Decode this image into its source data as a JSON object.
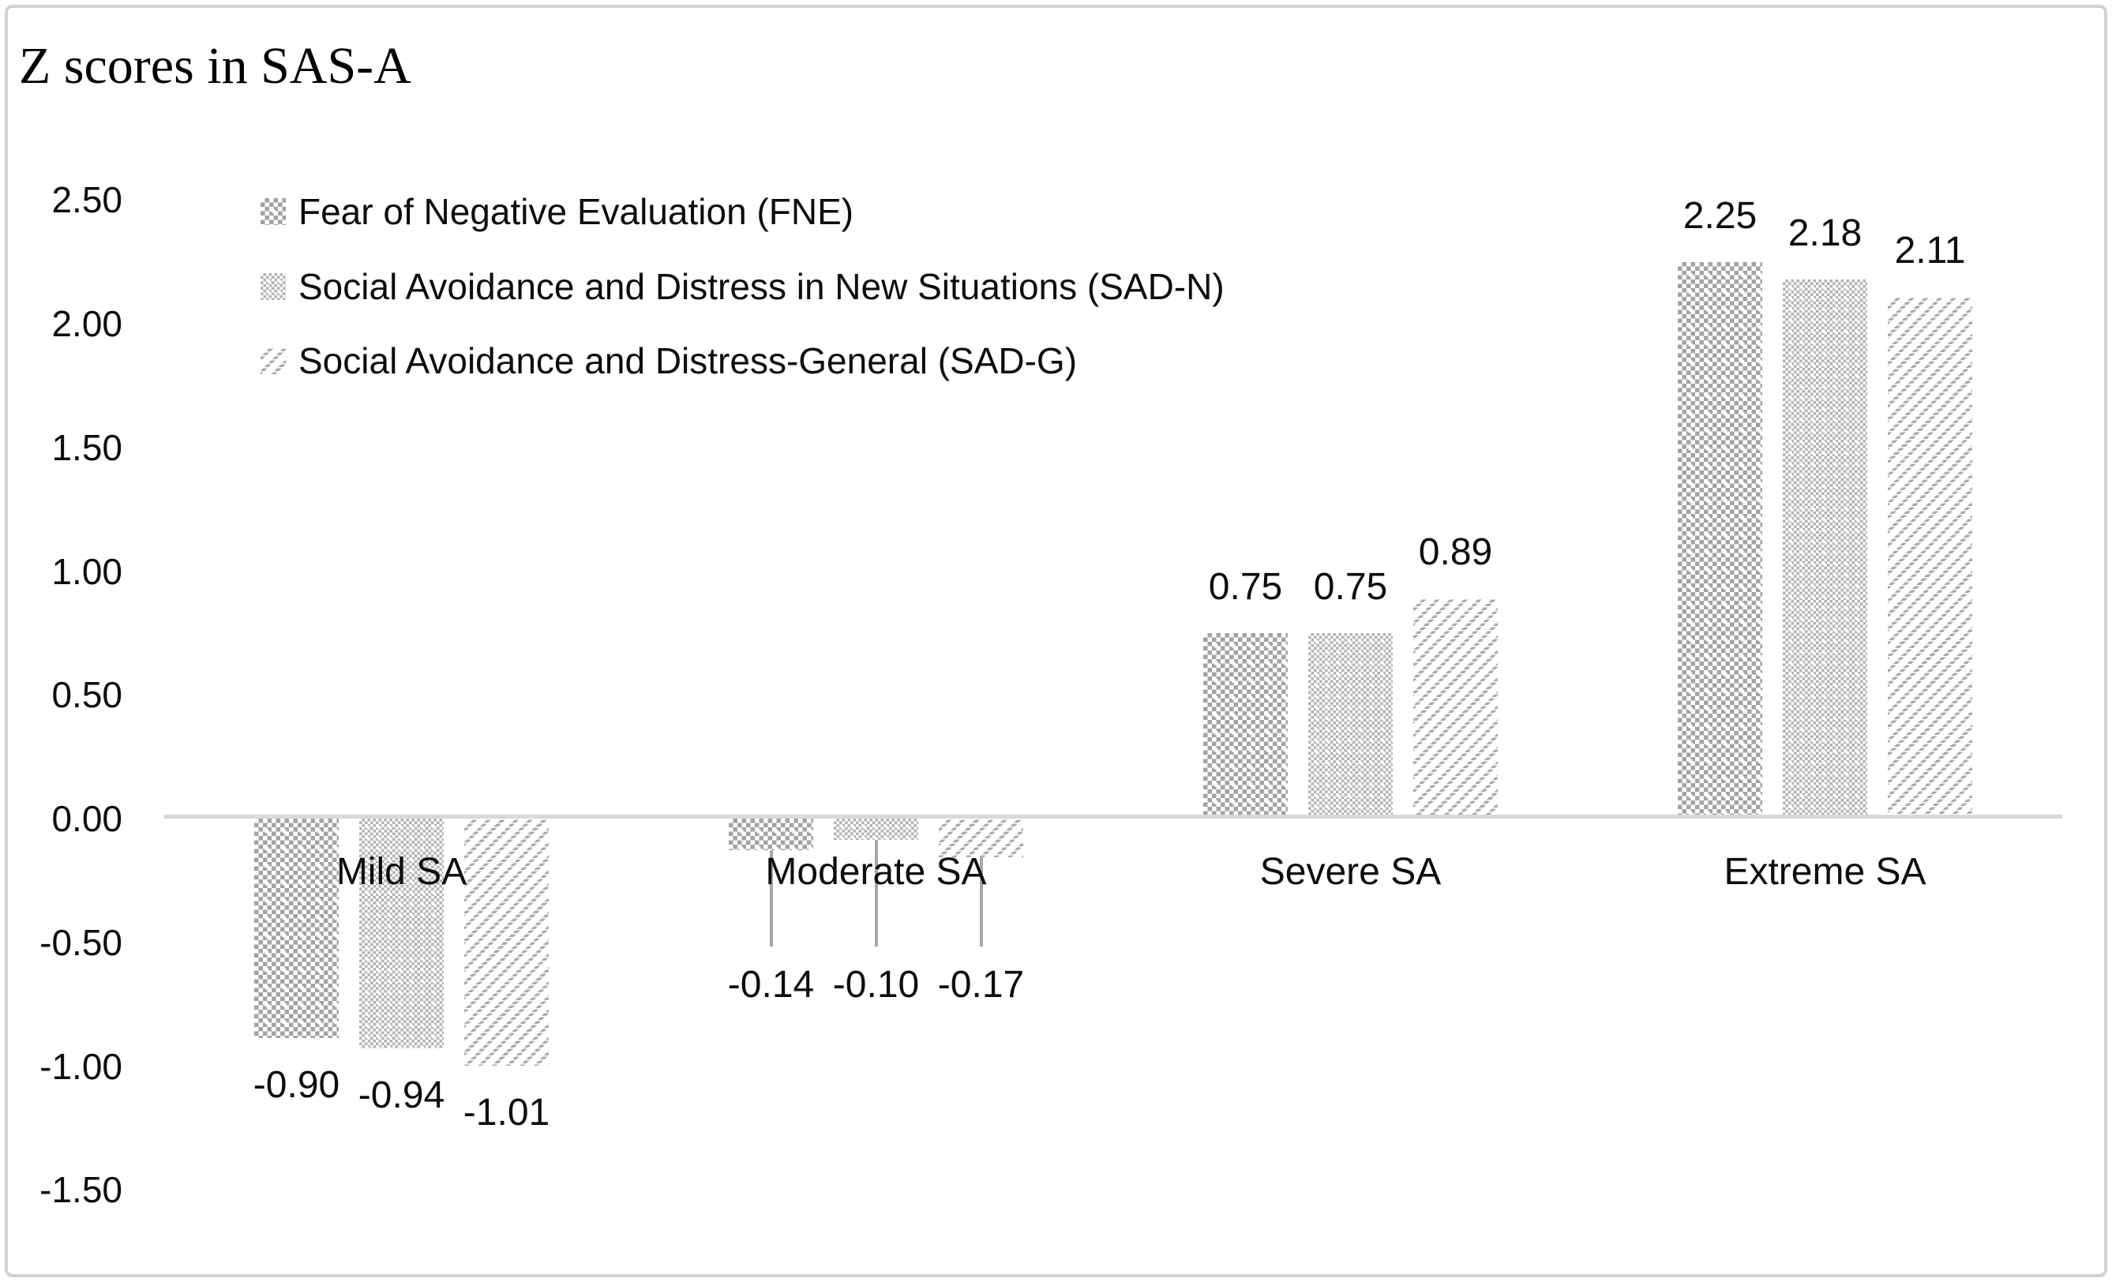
{
  "title": "Z scores in SAS-A",
  "legend": [
    {
      "label": "Fear of Negative Evaluation (FNE)",
      "pattern": "checker-dense"
    },
    {
      "label": "Social Avoidance and Distress in New Situations (SAD-N)",
      "pattern": "checker-fine"
    },
    {
      "label": "Social Avoidance and Distress-General (SAD-G)",
      "pattern": "diagonal-dash"
    }
  ],
  "chart_data": {
    "type": "bar",
    "title": "Z scores in SAS-A",
    "categories": [
      "Mild SA",
      "Moderate SA",
      "Severe SA",
      "Extreme SA"
    ],
    "series": [
      {
        "name": "Fear of Negative Evaluation (FNE)",
        "pattern": "checker-dense",
        "values": [
          -0.9,
          -0.14,
          0.75,
          2.25
        ]
      },
      {
        "name": "Social Avoidance and Distress in New Situations (SAD-N)",
        "pattern": "checker-fine",
        "values": [
          -0.94,
          -0.1,
          0.75,
          2.18
        ]
      },
      {
        "name": "Social Avoidance and Distress-General (SAD-G)",
        "pattern": "diagonal-dash",
        "values": [
          -1.01,
          -0.17,
          0.89,
          2.11
        ]
      }
    ],
    "data_labels": [
      [
        "-0.90",
        "-0.94",
        "-1.01"
      ],
      [
        "-0.14",
        "-0.10",
        "-0.17"
      ],
      [
        "0.75",
        "0.75",
        "0.89"
      ],
      [
        "2.25",
        "2.18",
        "2.11"
      ]
    ],
    "label_placement_per_category": [
      "below",
      "leader",
      "above",
      "above"
    ],
    "y_ticks": [
      "2.50",
      "2.00",
      "1.50",
      "1.00",
      "0.50",
      "0.00",
      "-0.50",
      "-1.00",
      "-1.50"
    ],
    "y_tick_values": [
      2.5,
      2.0,
      1.5,
      1.0,
      0.5,
      0.0,
      -0.5,
      -1.0,
      -1.5
    ],
    "ylim": [
      -1.5,
      2.5
    ],
    "xlabel": "",
    "ylabel": "",
    "grid": false,
    "legend_position": "top-left-inside",
    "colors": {
      "pattern_gray": "#a6a6a6",
      "axis_line": "#d9d9d9",
      "leader_line": "#a6a6a6",
      "frame_border": "#d2d2d2",
      "text": "#0d0d0d",
      "background": "#ffffff"
    }
  }
}
